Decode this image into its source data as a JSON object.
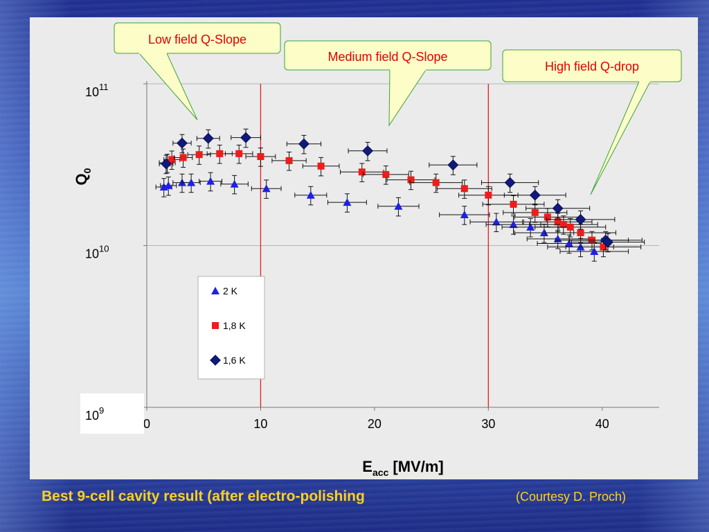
{
  "caption": "Best 9-cell cavity result (after electro-polishing",
  "credit": "(Courtesy D. Proch)",
  "callouts": [
    {
      "text": "Low field Q-Slope"
    },
    {
      "text": "Medium field Q-Slope"
    },
    {
      "text": "High field Q-drop"
    }
  ],
  "chart_data": {
    "type": "scatter",
    "title": "",
    "xlabel": {
      "main": "E",
      "sub": "acc",
      "unit": " [MV/m]"
    },
    "ylabel": {
      "main": "Q",
      "sub": "0"
    },
    "xlim": [
      0,
      45
    ],
    "ylim": [
      1000000000.0,
      100000000000.0
    ],
    "y_scale": "log",
    "x_ticks": [
      "0",
      "10",
      "20",
      "30",
      "40"
    ],
    "y_ticks": [
      {
        "base": "10",
        "exp": "9"
      },
      {
        "base": "10",
        "exp": "10"
      },
      {
        "base": "10",
        "exp": "11"
      }
    ],
    "grid": "horizontal",
    "legend_position": "lower-left",
    "vertical_lines_x": [
      10,
      30
    ],
    "colors": {
      "2K": "#1f1fe8",
      "1.8K": "#ee1c1c",
      "1.6K": "#0f1a7a",
      "vline": "#e02020",
      "grid": "#b5b5b5"
    },
    "series": [
      {
        "name": "2 K",
        "marker": "triangle",
        "x": [
          1.5,
          1.9,
          3.1,
          3.9,
          5.6,
          7.7,
          10.5,
          14.4,
          17.6,
          22.1,
          27.9,
          30.7,
          32.2,
          33.7,
          34.9,
          36.1,
          37.1,
          38.1,
          39.3
        ],
        "y": [
          23000000000.0,
          23500000000.0,
          24500000000.0,
          24500000000.0,
          25000000000.0,
          24000000000.0,
          22500000000.0,
          20500000000.0,
          18500000000.0,
          17500000000.0,
          15500000000.0,
          14000000000.0,
          13500000000.0,
          13000000000.0,
          12000000000.0,
          11000000000.0,
          10300000000.0,
          9800000000.0,
          9200000000.0
        ],
        "xerr": [
          0.7,
          0.7,
          0.8,
          0.8,
          1.0,
          1.2,
          1.3,
          1.4,
          1.7,
          1.8,
          2.2,
          2.3,
          2.4,
          2.5,
          2.6,
          2.7,
          2.8,
          2.9,
          3.0
        ],
        "yerr": 0.13
      },
      {
        "name": "1,8 K",
        "marker": "square",
        "x": [
          1.8,
          2.2,
          3.2,
          4.6,
          6.4,
          8.1,
          10.0,
          12.5,
          15.3,
          18.9,
          21.0,
          23.2,
          25.4,
          27.9,
          30.0,
          32.2,
          34.1,
          35.2,
          36.1,
          36.6,
          37.2,
          38.1,
          39.1,
          40.1
        ],
        "y": [
          32500000000.0,
          34000000000.0,
          35000000000.0,
          36500000000.0,
          37000000000.0,
          37000000000.0,
          35500000000.0,
          33500000000.0,
          31000000000.0,
          28500000000.0,
          27500000000.0,
          25500000000.0,
          24500000000.0,
          22500000000.0,
          20500000000.0,
          18000000000.0,
          16000000000.0,
          15000000000.0,
          14000000000.0,
          13500000000.0,
          13000000000.0,
          12000000000.0,
          10800000000.0,
          9800000000.0
        ],
        "xerr": [
          0.7,
          0.7,
          0.8,
          1.0,
          1.1,
          1.2,
          1.3,
          1.5,
          1.6,
          1.9,
          2.0,
          2.1,
          2.3,
          2.4,
          2.6,
          2.7,
          2.8,
          2.9,
          3.0,
          3.0,
          3.1,
          3.1,
          3.2,
          3.3
        ],
        "yerr": 0.13
      },
      {
        "name": "1,6 K",
        "marker": "diamond",
        "x": [
          1.7,
          3.1,
          5.4,
          8.7,
          13.8,
          19.4,
          26.9,
          31.9,
          34.1,
          36.1,
          38.1,
          40.3,
          40.5
        ],
        "y": [
          32000000000.0,
          43000000000.0,
          46000000000.0,
          46500000000.0,
          42500000000.0,
          38500000000.0,
          31500000000.0,
          24500000000.0,
          20500000000.0,
          17000000000.0,
          14500000000.0,
          10800000000.0,
          10500000000.0
        ],
        "xerr": [
          0.6,
          0.8,
          1.0,
          1.3,
          1.5,
          1.7,
          2.1,
          2.5,
          2.7,
          2.8,
          3.0,
          3.2,
          3.2
        ],
        "yerr": 0.13
      }
    ]
  }
}
